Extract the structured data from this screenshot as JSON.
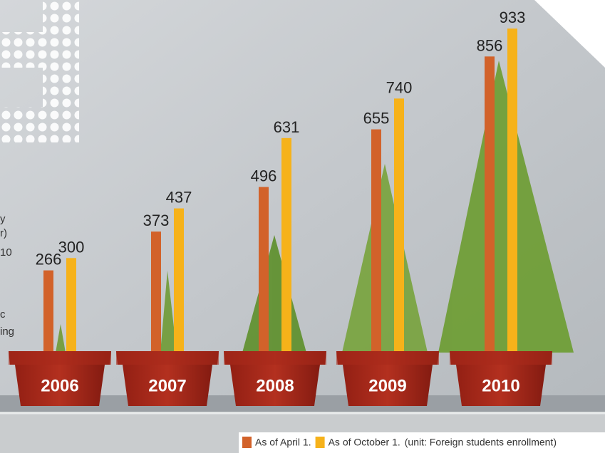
{
  "chart_data": {
    "type": "bar",
    "categories": [
      "2006",
      "2007",
      "2008",
      "2009",
      "2010"
    ],
    "series": [
      {
        "name": "As of April 1.",
        "color": "#d2622a",
        "values": [
          266,
          373,
          496,
          655,
          856
        ]
      },
      {
        "name": "As of October 1.",
        "color": "#f6b21a",
        "values": [
          300,
          437,
          631,
          740,
          933
        ]
      }
    ],
    "unit_note": "(unit: Foreign students enrollment)",
    "cropped_text": [
      "y",
      "r)",
      "10",
      "c",
      "ing"
    ]
  }
}
